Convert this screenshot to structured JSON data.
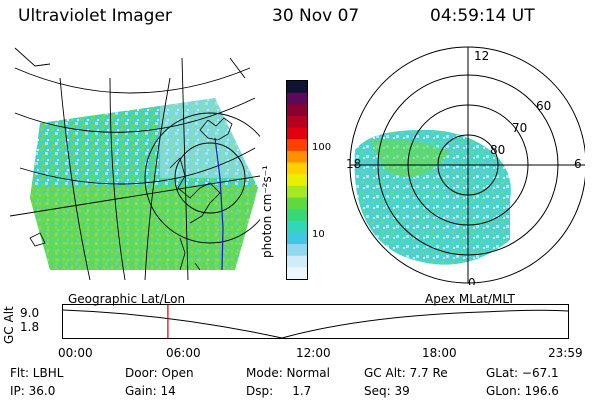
{
  "header": {
    "instrument": "Ultraviolet Imager",
    "date": "30 Nov 07",
    "time": "04:59:14 UT"
  },
  "colorbar": {
    "unit_label": "photon cm⁻²s⁻¹",
    "ticks": [
      "100",
      "10"
    ],
    "colors": [
      "#111133",
      "#5a0a5a",
      "#8a0030",
      "#b80020",
      "#e00010",
      "#ff4000",
      "#ff9000",
      "#ffd000",
      "#e8f000",
      "#a8e820",
      "#60d840",
      "#38d878",
      "#30d8b8",
      "#40c8e0",
      "#90d8f0",
      "#d0ecf8",
      "#eef6fb"
    ]
  },
  "geo_map": {
    "name": "geographic-projection"
  },
  "polar_map": {
    "mlt_labels": [
      "12",
      "18",
      "6",
      "0"
    ],
    "lat_labels": [
      "60",
      "70",
      "80"
    ]
  },
  "strip": {
    "left_title": "Geographic Lat/Lon",
    "right_title": "Apex MLat/MLT",
    "y_label": "GC Alt",
    "y_ticks": [
      "9.0",
      "1.8"
    ],
    "x_ticks": [
      "00:00",
      "06:00",
      "12:00",
      "18:00",
      "23:59"
    ],
    "cursor_fraction": 0.2077
  },
  "footer": {
    "row1": [
      "Flt: LBHL",
      "Door: Open",
      "Mode: Normal",
      "GC Alt: 7.7 Re",
      "GLat: −67.1"
    ],
    "row2": [
      "IP: 36.0",
      "Gain: 14",
      "Dsp:     1.7",
      "Seq: 39",
      "GLon: 196.6"
    ]
  }
}
